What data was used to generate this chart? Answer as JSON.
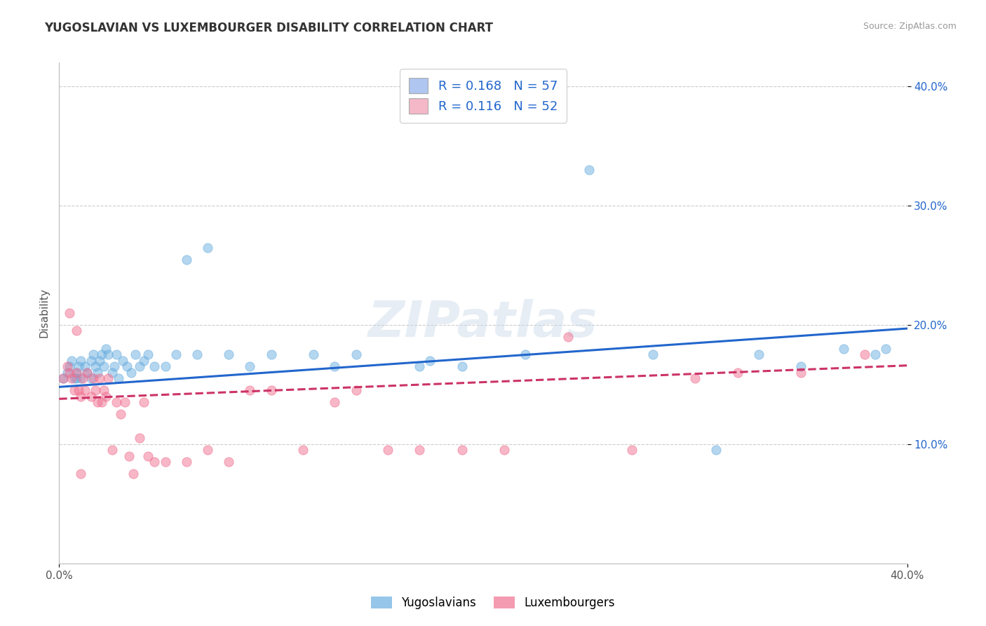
{
  "title": "YUGOSLAVIAN VS LUXEMBOURGER DISABILITY CORRELATION CHART",
  "source": "Source: ZipAtlas.com",
  "ylabel": "Disability",
  "watermark": "ZIPatlas",
  "legend_entries": [
    {
      "label": "R = 0.168   N = 57",
      "color": "#aec6f0"
    },
    {
      "label": "R = 0.116   N = 52",
      "color": "#f5b8c8"
    }
  ],
  "blue_color": "#6aaee0",
  "pink_color": "#f07090",
  "blue_line_color": "#2266cc",
  "pink_line_color": "#cc3366",
  "axis_color": "#bbbbbb",
  "grid_color": "#cccccc",
  "xlim": [
    0.0,
    0.4
  ],
  "ylim": [
    0.0,
    0.42
  ],
  "yticks": [
    0.1,
    0.2,
    0.3,
    0.4
  ],
  "ytick_labels": [
    "10.0%",
    "20.0%",
    "30.0%",
    "40.0%"
  ],
  "blue_scatter_x": [
    0.002,
    0.004,
    0.005,
    0.006,
    0.007,
    0.008,
    0.008,
    0.009,
    0.01,
    0.01,
    0.012,
    0.013,
    0.015,
    0.015,
    0.016,
    0.017,
    0.018,
    0.019,
    0.02,
    0.021,
    0.022,
    0.023,
    0.025,
    0.026,
    0.027,
    0.028,
    0.03,
    0.032,
    0.034,
    0.036,
    0.038,
    0.04,
    0.042,
    0.045,
    0.05,
    0.055,
    0.06,
    0.065,
    0.07,
    0.08,
    0.09,
    0.1,
    0.12,
    0.13,
    0.14,
    0.17,
    0.175,
    0.19,
    0.22,
    0.25,
    0.28,
    0.31,
    0.33,
    0.35,
    0.37,
    0.385,
    0.39
  ],
  "blue_scatter_y": [
    0.155,
    0.16,
    0.165,
    0.17,
    0.155,
    0.16,
    0.155,
    0.165,
    0.17,
    0.155,
    0.165,
    0.16,
    0.17,
    0.155,
    0.175,
    0.165,
    0.16,
    0.17,
    0.175,
    0.165,
    0.18,
    0.175,
    0.16,
    0.165,
    0.175,
    0.155,
    0.17,
    0.165,
    0.16,
    0.175,
    0.165,
    0.17,
    0.175,
    0.165,
    0.165,
    0.175,
    0.255,
    0.175,
    0.265,
    0.175,
    0.165,
    0.175,
    0.175,
    0.165,
    0.175,
    0.165,
    0.17,
    0.165,
    0.175,
    0.33,
    0.175,
    0.095,
    0.175,
    0.165,
    0.18,
    0.175,
    0.18
  ],
  "pink_scatter_x": [
    0.002,
    0.004,
    0.005,
    0.006,
    0.007,
    0.008,
    0.009,
    0.01,
    0.011,
    0.012,
    0.013,
    0.015,
    0.016,
    0.017,
    0.018,
    0.019,
    0.02,
    0.021,
    0.022,
    0.023,
    0.025,
    0.027,
    0.029,
    0.031,
    0.033,
    0.035,
    0.038,
    0.04,
    0.042,
    0.045,
    0.05,
    0.06,
    0.07,
    0.08,
    0.09,
    0.1,
    0.115,
    0.13,
    0.14,
    0.155,
    0.17,
    0.19,
    0.21,
    0.24,
    0.27,
    0.3,
    0.32,
    0.35,
    0.38,
    0.005,
    0.008,
    0.01
  ],
  "pink_scatter_y": [
    0.155,
    0.165,
    0.16,
    0.155,
    0.145,
    0.16,
    0.145,
    0.14,
    0.155,
    0.145,
    0.16,
    0.14,
    0.155,
    0.145,
    0.135,
    0.155,
    0.135,
    0.145,
    0.14,
    0.155,
    0.095,
    0.135,
    0.125,
    0.135,
    0.09,
    0.075,
    0.105,
    0.135,
    0.09,
    0.085,
    0.085,
    0.085,
    0.095,
    0.085,
    0.145,
    0.145,
    0.095,
    0.135,
    0.145,
    0.095,
    0.095,
    0.095,
    0.095,
    0.19,
    0.095,
    0.155,
    0.16,
    0.16,
    0.175,
    0.21,
    0.195,
    0.075
  ],
  "blue_line_x": [
    0.0,
    0.4
  ],
  "blue_line_y": [
    0.148,
    0.197
  ],
  "pink_line_x": [
    0.0,
    0.4
  ],
  "pink_line_y": [
    0.138,
    0.166
  ],
  "marker_size": 90,
  "marker_alpha": 0.5,
  "line_width": 2.2,
  "fig_bg": "#ffffff",
  "title_fontsize": 12,
  "source_fontsize": 9,
  "watermark_fontsize": 52,
  "watermark_color": "#c8d8e8",
  "watermark_alpha": 0.45
}
